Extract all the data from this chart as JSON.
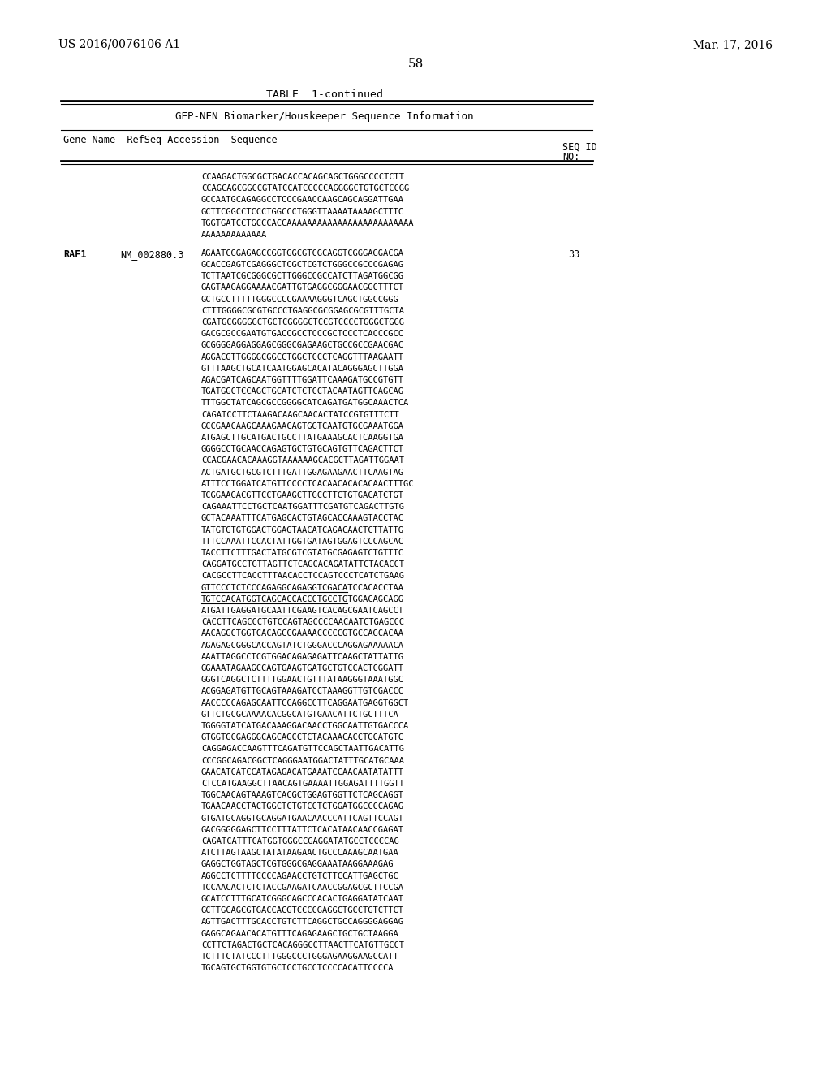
{
  "header_left": "US 2016/0076106 A1",
  "header_right": "Mar. 17, 2016",
  "page_number": "58",
  "table_title": "TABLE  1-continued",
  "table_subtitle": "GEP-NEN Biomarker/Houskeeper Sequence Information",
  "background_color": "#ffffff",
  "text_color": "#000000",
  "continuation_sequence_lines": [
    "CCAAGACTGGCGCTGACACCACAGCAGCTGGGCCCCTCTT",
    "CCAGCAGCGGCCGTATCCATCCCCCAGGGGCTGTGCTCCGG",
    "GCCAATGCAGAGGCCTCCCGAACCAAGCAGCAGGATTGAA",
    "GCTTCGGCCTCCCTGGCCCTGGGTTAAAATAAAAGCTTTC",
    "TGGTGATCCTGCCCACCAAAAAAAAAAAAAAAAAAAAAAAAA",
    "AAAAAAAAAAAAA"
  ],
  "rap1_gene": "RAF1",
  "rap1_accession": "NM_002880.3",
  "rap1_seq_id": "33",
  "rap1_sequence_lines": [
    "AGAATCGGAGAGCCGGTGGCGTCGCAGGTCGGGAGGACGA",
    "GCACCGAGTCGAGGGCTCGCTCGTCTGGGCCGCCCGAGAG",
    "TCTTAATCGCGGGCGCTTGGGCCGCCATCTTAGATGGCGG",
    "GAGTAAGAGGAAAACGATTGTGAGGCGGGAACGGCTTTCT",
    "GCTGCCTTTTTGGGCCCCGAAAAGGGTCAGCTGGCCGGG",
    "CTTTGGGGCGCGTGCCCTGAGGCGCGGAGCGCGTTTGCTA",
    "CGATGCGGGGGCTGCTCGGGGCTCCGTCCCCTGGGCTGGG",
    "GACGCGCCGAATGTGACCGCCTCCCGCTCCCTCACCCGCC",
    "GCGGGGAGGAGGAGCGGGCGAGAAGCTGCCGCCGAACGAC",
    "AGGACGTTGGGGCGGCCTGGCTCCCTCAGGTTTAAGAATT",
    "GTTTAAGCTGCATCAATGGAGCACATACAGGGAGCTTGGA",
    "AGACGATCAGCAATGGTTTTGGATTCAAAGATGCCGTGTT",
    "TGATGGCTCCAGCTGCATCTCTCCTACAATAGTTCAGCAG",
    "TTTGGCTATCAGCGCCGGGGCATCAGATGATGGCAAACTCA",
    "CAGATCCTTCTAAGACAAGCAACACTATCCGTGTTTCTT",
    "GCCGAACAAGCAAAGAACAGTGGTCAATGTGCGAAATGGA",
    "ATGAGCTTGCATGACTGCCTTATGAAAGCACTCAAGGTGA",
    "GGGGCCTGCAACCAGAGTGCTGTGCAGTGTTCAGACTTCT",
    "CCACGAACACAAAGGTAAAAAAGCACGCTTAGATTGGAAT",
    "ACTGATGCTGCGTCTTTGATTGGAGAAGAACTTCAAGTAG",
    "ATTTCCTGGATCATGTTCCCCTCACAACACACACAACTTTGC",
    "TCGGAAGACGTTCCTGAAGCTTGCCTTCTGTGACATCTGT",
    "CAGAAATTCCTGCTCAATGGATTTCGATGTCAGACTTGTG",
    "GCTACAAATTTCATGAGCACTGTAGCACCAAAGTACCTAC",
    "TATGTGTGTGGACTGGAGTAACATCAGACAACTCTTATTG",
    "TTTCCAAATTCCACTATTGGTGATAGTGGAGTCCCAGCAC",
    "TACCTTCTTTGACTATGCGTCGTATGCGAGAGTCTGTTTC",
    "CAGGATGCCTGTTAGTTCTCAGCACAGATATTCTACACCT",
    "CACGCCTTCACCTTTAACACCTCCAGTCCCTCATCTGAAG",
    "GTTCCCTCTCCCAGAGGCAGAGGTCGACATCCACACCTAA",
    "TGTCCACATGGTCAGCACCACCCTGCCTGTGGACAGCAGG",
    "ATGATTGAGGATGCAATTCGAAGTCACAGCGAATCAGCCT",
    "CACCTTCAGCCCTGTCCAGTAGCCCCAACAATCTGAGCCC",
    "AACAGGCTGGTCACAGCCGAAAACCCCCGTGCCAGCACAA",
    "AGAGAGCGGGCACCAGTATCTGGGACCCAGGAGAAAAACA",
    "AAATTAGGCCTCGTGGACAGAGAGATTCAAGCTATTATTG",
    "GGAAATAGAAGCCAGTGAAGTGATGCTGTCCACTCGGATT",
    "GGGTCAGGCTCTTTTGGAACTGTTTATAAGGGTAAATGGC",
    "ACGGAGATGTTGCAGTAAAGATCCTAAAGGTTGTCGACCC",
    "AACCCCCAGAGCAATTCCAGGCCTTCAGGAATGAGGTGGCT",
    "GTTCTGCGCAAAACACGGCATGTGAACATTCTGCTTTCA",
    "TGGGGTATCATGACAAAGGACAACCTGGCAATTGTGACCCA",
    "GTGGTGCGAGGGCAGCAGCCTCTACAAACACCTGCATGTC",
    "CAGGAGACCAAGTTTCAGATGTTCCAGCTAATTGACATTG",
    "CCCGGCAGACGGCTCAGGGAATGGACTATTTGCATGCAAA",
    "GAACATCATCCATAGAGACATGAAATCCAACAATATATTT",
    "CTCCATGAAGGCTTAACAGTGAAAATTGGAGATTTTGGTT",
    "TGGCAACAGTAAAGTCACGCTGGAGTGGTTCTCAGCAGGT",
    "TGAACAACCTACTGGCTCTGTCCTCTGGATGGCCCCAGAG",
    "GTGATGCAGGTGCAGGATGAACAACCCATTCAGTTCCAGT",
    "GACGGGGGAGCTTCCTTTATTCTCACATAACAACCGAGAT",
    "CAGATCATTTCATGGTGGGCCGAGGATATGCCTCCCCAG",
    "ATCTTAGTAAGCTATATAAGAACTGCCCAAAGCAATGAA",
    "GAGGCTGGTAGCTCGTGGGCGAGGAAATAAGGAAAGAG",
    "AGGCCTCTTTTCCCCAGAACCTGTCTTCCATTGAGCTGC",
    "TCCAACACTCTCTACCGAAGATCAACCGGAGCGCTTCCGA",
    "GCATCCTTTGCATCGGGCAGCCCACACTGAGGATATCAAT",
    "GCTTGCAGCGTGACCACGTCCCCGAGGCTGCCTGTCTTCT",
    "AGTTGACTTTGCACCTGTCTTCAGGCTGCCAGGGGAGGAG",
    "GAGGCAGAACACATGTTTCAGAGAAGCTGCTGCTAAGGA",
    "CCTTCTAGACTGCTCACAGGGCCTTAACTTCATGTTGCCT",
    "TCTTTCTATCCCTTTGGGCCCTGGGAGAAGGAAGCCATT",
    "TGCAGTGCTGGTGTGCTCCTGCCTCCCCACATTCCCCA"
  ],
  "underline_line_indices": [
    29,
    30,
    31
  ]
}
